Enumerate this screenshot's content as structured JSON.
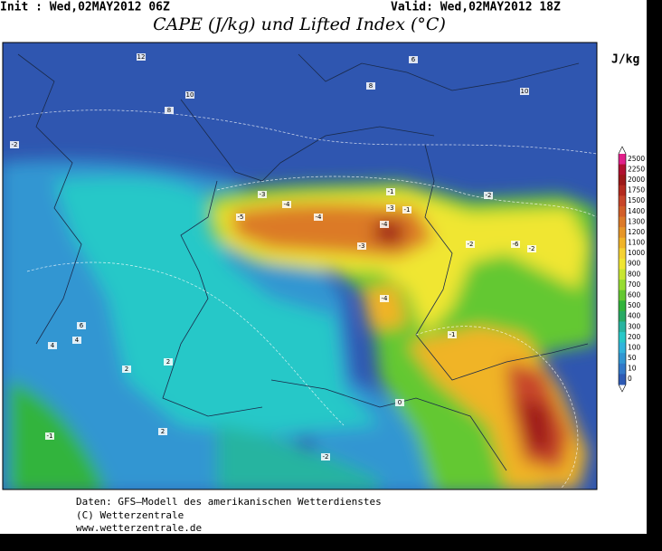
{
  "header": {
    "init": "Init : Wed,02MAY2012 06Z",
    "valid": "Valid: Wed,02MAY2012 18Z",
    "title": "CAPE (J/kg) und Lifted Index (°C)"
  },
  "legend": {
    "unit": "J/kg",
    "levels": [
      2500,
      2250,
      2000,
      1750,
      1500,
      1400,
      1300,
      1200,
      1100,
      1000,
      900,
      800,
      700,
      600,
      500,
      400,
      300,
      200,
      100,
      50,
      10,
      0
    ],
    "colors": [
      "#e0208a",
      "#b01030",
      "#9c1818",
      "#b42a1e",
      "#c8462a",
      "#d25e28",
      "#dc7a28",
      "#e69628",
      "#f0b428",
      "#f5d232",
      "#f0e632",
      "#c8e632",
      "#96dc32",
      "#64c832",
      "#32b43c",
      "#28aa64",
      "#28b4a0",
      "#28c8c8",
      "#32b4dc",
      "#3296d2",
      "#3278c8",
      "#2d5ab4"
    ]
  },
  "map_labels": [
    "12",
    "10",
    "8",
    "8",
    "10",
    "6",
    "4",
    "2",
    "-2",
    "-3",
    "-4",
    "-5",
    "-4",
    "-1",
    "-3",
    "-2",
    "-1",
    "-4",
    "-2",
    "-3",
    "-6",
    "-4",
    "-2",
    "-1",
    "0",
    "2",
    "2",
    "4",
    "6",
    "-1",
    "-2"
  ],
  "footer": [
    "Daten: GFS–Modell des amerikanischen Wetterdienstes",
    "(C) Wetterzentrale",
    "www.wetterzentrale.de"
  ]
}
